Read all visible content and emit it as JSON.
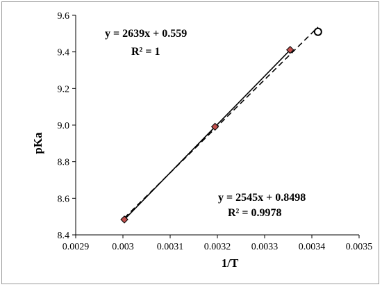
{
  "chart_data": {
    "type": "scatter",
    "xlabel": "1/T",
    "ylabel": "pKa",
    "xlim": [
      0.0029,
      0.0035
    ],
    "ylim": [
      8.4,
      9.6
    ],
    "x_ticks": [
      "0.0029",
      "0.003",
      "0.0031",
      "0.0032",
      "0.0033",
      "0.0034",
      "0.0035"
    ],
    "y_ticks": [
      "8.4",
      "8.6",
      "8.8",
      "9.0",
      "9.2",
      "9.4",
      "9.6"
    ],
    "grid": false,
    "series": [
      {
        "marker": "diamond",
        "color": "#c0504d",
        "x": [
          0.003003,
          0.003195,
          0.003354
        ],
        "y": [
          8.484,
          8.991,
          9.411
        ],
        "trendline": {
          "style": "solid",
          "slope": 2639,
          "intercept": 0.559
        }
      },
      {
        "marker": "circle",
        "color": "#000000",
        "x": [
          0.003003,
          0.003195,
          0.003354,
          0.003413
        ],
        "y": [
          8.484,
          8.991,
          9.411,
          9.51
        ],
        "trendline": {
          "style": "dashed",
          "slope": 2545,
          "intercept": 0.8498
        }
      }
    ],
    "annotations": [
      {
        "line1": "y = 2639x + 0.559",
        "line2": "R² = 1"
      },
      {
        "line1": "y = 2545x + 0.8498",
        "line2": "R² = 0.9978"
      }
    ]
  }
}
